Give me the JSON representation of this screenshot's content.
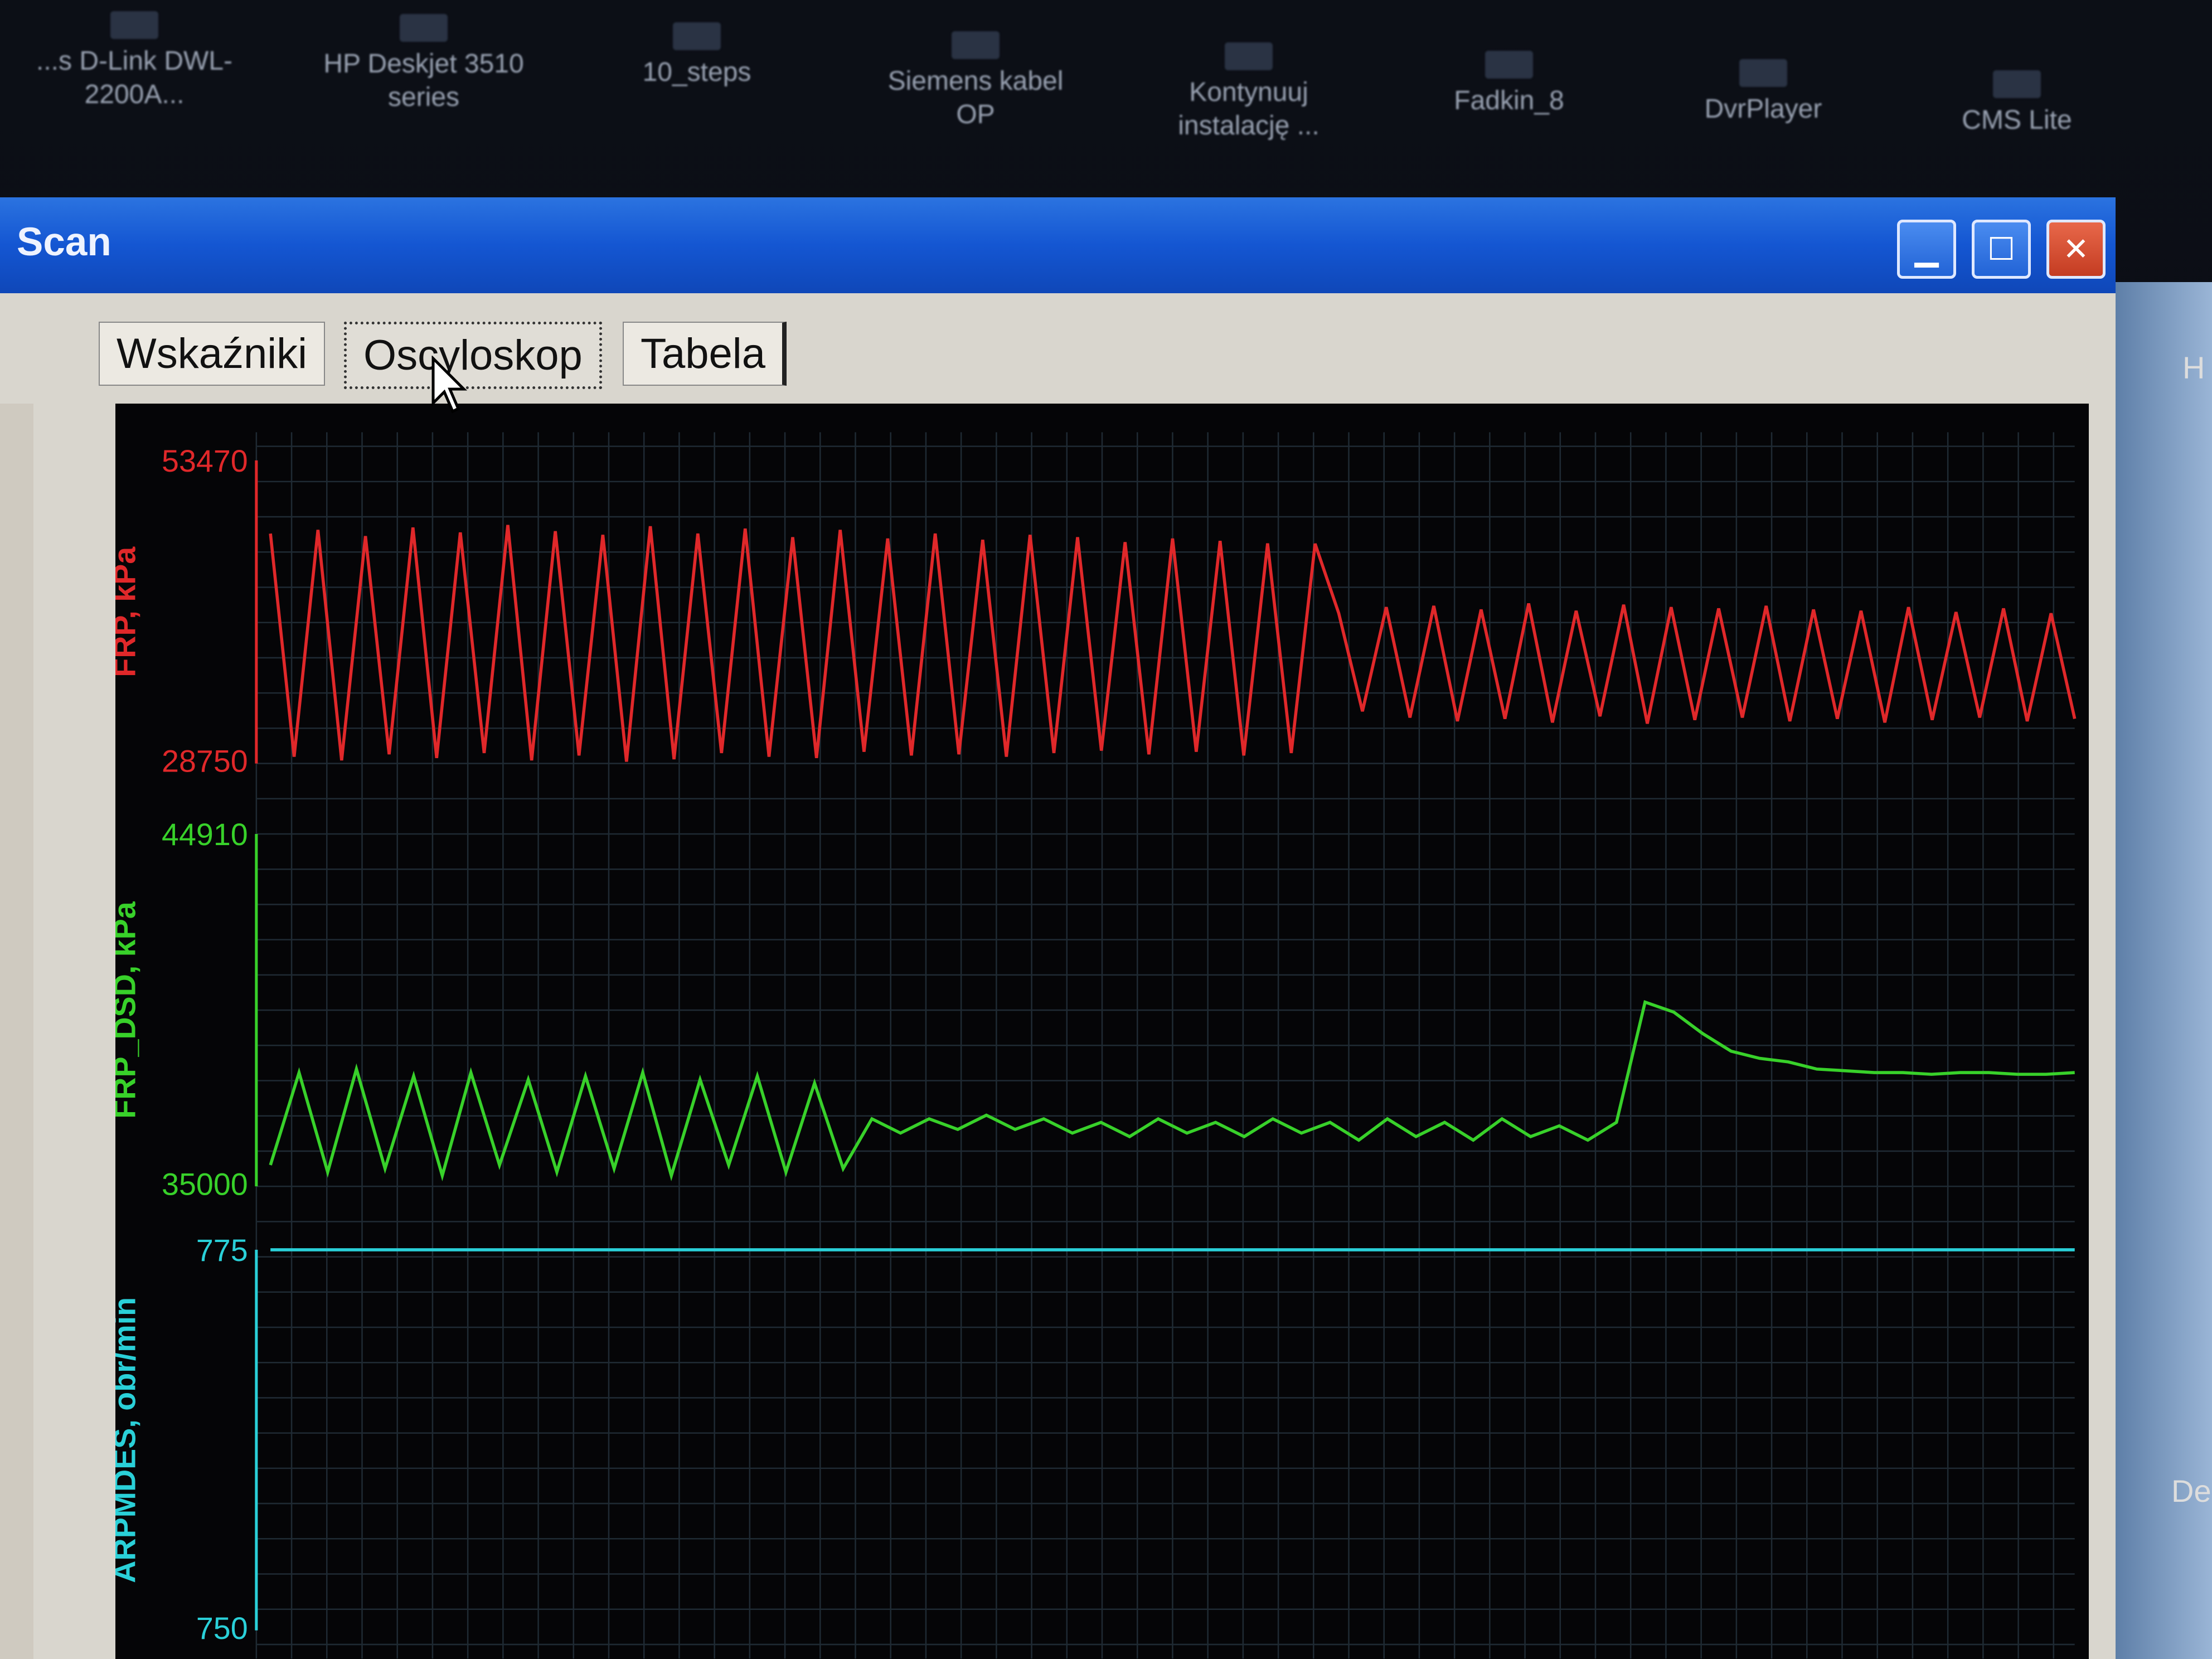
{
  "desktop": {
    "icons": [
      {
        "label": "...s D-Link DWL-2200A...",
        "icon": "network-icon"
      },
      {
        "label": "HP Deskjet 3510 series",
        "icon": "printer-icon"
      },
      {
        "label": "10_steps",
        "icon": "pdf-icon"
      },
      {
        "label": "Siemens kabel OP",
        "icon": "shortcut-icon"
      },
      {
        "label": "Kontynuuj instalację ...",
        "icon": "installer-icon"
      },
      {
        "label": "Fadkin_8",
        "icon": "app-icon"
      },
      {
        "label": "DvrPlayer",
        "icon": "player-icon"
      },
      {
        "label": "CMS Lite",
        "icon": "cms-icon"
      }
    ],
    "right_edge_texts": [
      "H",
      "De"
    ]
  },
  "window": {
    "title": "Scan",
    "controls": [
      "minimize",
      "maximize",
      "close"
    ]
  },
  "tabs": [
    {
      "label": "Wskaźniki",
      "active": false
    },
    {
      "label": "Oscyloskop",
      "active": true
    },
    {
      "label": "Tabela",
      "active": false
    }
  ],
  "chart_data": [
    {
      "type": "line",
      "ylabel": "FRP, kPa",
      "ylim": [
        28750,
        53470
      ],
      "yticks": [
        "53470",
        "28750"
      ],
      "color": "#e0282a",
      "grid": true,
      "values": [
        47500,
        29300,
        47800,
        29000,
        47300,
        29500,
        48000,
        29200,
        47600,
        29600,
        48200,
        29000,
        47700,
        29400,
        47400,
        28900,
        48100,
        29100,
        47500,
        29600,
        47900,
        29300,
        47200,
        29200,
        47800,
        29700,
        47100,
        29400,
        47500,
        29500,
        47000,
        29300,
        47400,
        29600,
        47200,
        29800,
        46800,
        29500,
        47100,
        29700,
        46900,
        29400,
        46700,
        29600,
        46670,
        41000,
        33000,
        41500,
        32500,
        41600,
        32200,
        41300,
        32400,
        41800,
        32100,
        41200,
        32600,
        41700,
        32000,
        41500,
        32300,
        41400,
        32500,
        41600,
        32200,
        41300,
        32400,
        41200,
        32100,
        41500,
        32300,
        41100,
        32500,
        41400,
        32200,
        41000,
        32400
      ]
    },
    {
      "type": "line",
      "ylabel": "FRP_DSD, kPa",
      "ylim": [
        35000,
        44910
      ],
      "yticks": [
        "44910",
        "35000"
      ],
      "color": "#38d12a",
      "grid": true,
      "values": [
        35600,
        38200,
        35400,
        38300,
        35500,
        38100,
        35300,
        38200,
        35600,
        38000,
        35400,
        38100,
        35500,
        38200,
        35300,
        38000,
        35600,
        38100,
        35400,
        37900,
        35500,
        36900,
        36500,
        36900,
        36600,
        37000,
        36600,
        36900,
        36500,
        36800,
        36400,
        36900,
        36500,
        36800,
        36400,
        36900,
        36500,
        36800,
        36300,
        36900,
        36400,
        36800,
        36300,
        36900,
        36400,
        36700,
        36300,
        36800,
        40180,
        39900,
        39300,
        38800,
        38600,
        38500,
        38300,
        38250,
        38200,
        38200,
        38150,
        38200,
        38200,
        38150,
        38150,
        38200
      ]
    },
    {
      "type": "line",
      "ylabel": "ARPMDES, obr/min",
      "ylim": [
        750,
        775
      ],
      "yticks": [
        "775",
        "750"
      ],
      "color": "#2ad0d8",
      "grid": true,
      "values": [
        775,
        775
      ]
    }
  ]
}
